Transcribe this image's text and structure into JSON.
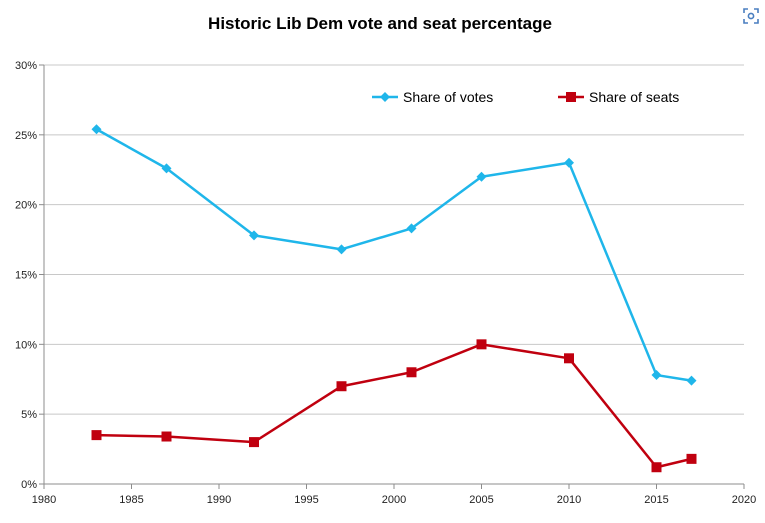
{
  "chart_data": {
    "type": "line",
    "title": "Historic Lib Dem vote and seat percentage",
    "xlabel": "",
    "ylabel": "",
    "xlim": [
      1980,
      2020
    ],
    "ylim": [
      0,
      30
    ],
    "x_ticks": [
      1980,
      1985,
      1990,
      1995,
      2000,
      2005,
      2010,
      2015,
      2020
    ],
    "y_ticks": [
      "0%",
      "5%",
      "10%",
      "15%",
      "20%",
      "25%",
      "30%"
    ],
    "y_tick_values": [
      0,
      5,
      10,
      15,
      20,
      25,
      30
    ],
    "grid": "horizontal",
    "legend_position": "top-right",
    "x": [
      1983,
      1987,
      1992,
      1997,
      2001,
      2005,
      2010,
      2015,
      2017
    ],
    "series": [
      {
        "name": "Share of votes",
        "color": "#1fb6ea",
        "marker": "diamond",
        "values": [
          25.4,
          22.6,
          17.8,
          16.8,
          18.3,
          22.0,
          23.0,
          7.8,
          7.4
        ]
      },
      {
        "name": "Share of seats",
        "color": "#c0000f",
        "marker": "square",
        "values": [
          3.5,
          3.4,
          3.0,
          7.0,
          8.0,
          10.0,
          9.0,
          1.2,
          1.8
        ]
      }
    ]
  },
  "toolbar": {
    "lens_icon": "visual-search-icon"
  }
}
